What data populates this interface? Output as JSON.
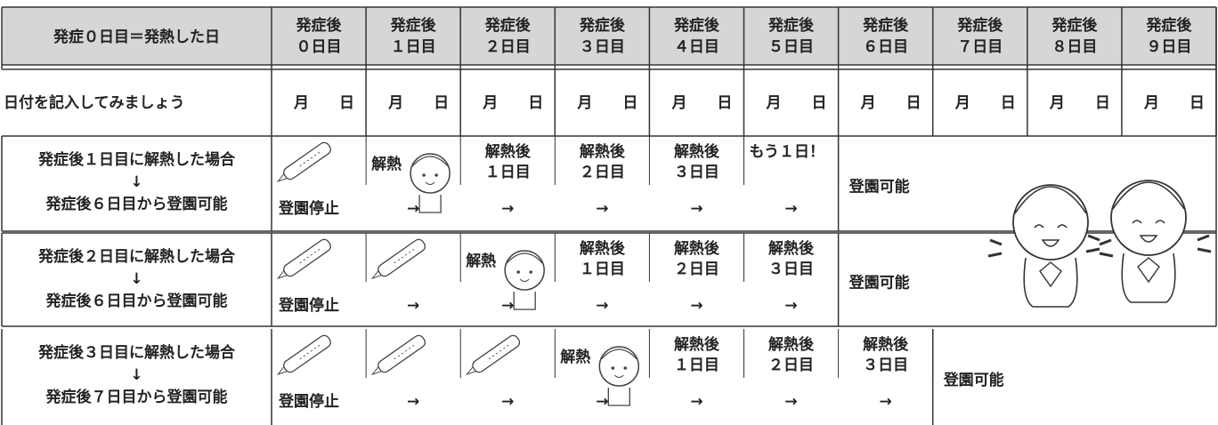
{
  "table": {
    "header": [
      "発症０日目＝発熱した日",
      [
        "発症後",
        "０日目"
      ],
      [
        "発症後",
        "１日目"
      ],
      [
        "発症後",
        "２日目"
      ],
      [
        "発症後",
        "３日目"
      ],
      [
        "発症後",
        "４日目"
      ],
      [
        "発症後",
        "５日目"
      ],
      [
        "発症後",
        "６日目"
      ],
      [
        "発症後",
        "７日目"
      ],
      [
        "発症後",
        "８日目"
      ],
      [
        "発症後",
        "９日目"
      ]
    ],
    "date_row": {
      "label": "日付を記入してみましょう",
      "cells": [
        "月　　日",
        "月　　日",
        "月　　日",
        "月　　日",
        "月　　日",
        "月　　日",
        "月　　日",
        "月　　日",
        "月　　日",
        "月　　日"
      ]
    },
    "rows": [
      {
        "label": [
          "発症後１日目に解熱した場合",
          "↓",
          "発症後６日目から登園可能"
        ],
        "cells": [
          {
            "bottom": "登園停止"
          },
          {
            "top": [
              "解熱"
            ],
            "bottom": "→"
          },
          {
            "top": [
              "解熱後",
              "１日目"
            ],
            "bottom": "→"
          },
          {
            "top": [
              "解熱後",
              "２日目"
            ],
            "bottom": "→"
          },
          {
            "top": [
              "解熱後",
              "３日目"
            ],
            "bottom": "→"
          },
          {
            "top": [
              "もう１日！"
            ],
            "bottom": "→"
          }
        ],
        "available": "登園可能"
      },
      {
        "label": [
          "発症後２日目に解熱した場合",
          "↓",
          "発症後６日目から登園可能"
        ],
        "cells": [
          {
            "bottom": "登園停止"
          },
          {
            "bottom": "→"
          },
          {
            "top": [
              "解熱"
            ],
            "bottom": "→"
          },
          {
            "top": [
              "解熱後",
              "１日目"
            ],
            "bottom": "→"
          },
          {
            "top": [
              "解熱後",
              "２日目"
            ],
            "bottom": "→"
          },
          {
            "top": [
              "解熱後",
              "３日目"
            ],
            "bottom": "→"
          }
        ],
        "available": "登園可能"
      },
      {
        "label": [
          "発症後３日目に解熱した場合",
          "↓",
          "発症後７日目から登園可能"
        ],
        "cells": [
          {
            "bottom": "登園停止"
          },
          {
            "bottom": "→"
          },
          {
            "bottom": "→"
          },
          {
            "top": [
              "解熱"
            ],
            "bottom": "→"
          },
          {
            "top": [
              "解熱後",
              "１日目"
            ],
            "bottom": "→"
          },
          {
            "top": [
              "解熱後",
              "２日目"
            ],
            "bottom": "→"
          },
          {
            "top": [
              "解熱後",
              "３日目"
            ],
            "bottom": "→"
          }
        ],
        "available": "登園可能"
      }
    ]
  }
}
